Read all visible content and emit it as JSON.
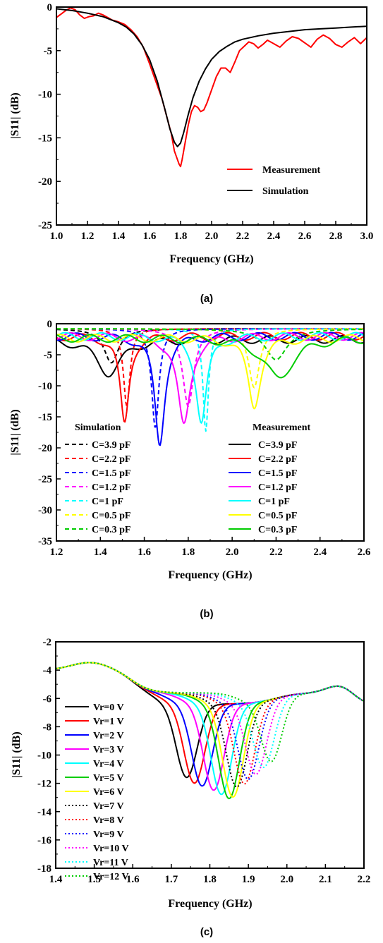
{
  "chart_data": [
    {
      "panel_label": "(a)",
      "type": "line",
      "xlabel": "Frequency (GHz)",
      "ylabel": "|S11| (dB)",
      "xlim": [
        1.0,
        3.0
      ],
      "ylim": [
        -25,
        0
      ],
      "xticks": [
        1.0,
        1.2,
        1.4,
        1.6,
        1.8,
        2.0,
        2.2,
        2.4,
        2.6,
        2.8,
        3.0
      ],
      "xtick_labels": [
        "1.0",
        "1.2",
        "1.4",
        "1.6",
        "1.8",
        "2.0",
        "2.2",
        "2.4",
        "2.6",
        "2.8",
        "3.0"
      ],
      "yticks": [
        0,
        -5,
        -10,
        -15,
        -20,
        -25
      ],
      "ytick_labels": [
        "0",
        "-5",
        "-10",
        "-15",
        "-20",
        "-25"
      ],
      "legend_position": "lower-right",
      "series": [
        {
          "name": "Measurement",
          "color": "#ff0000",
          "dash": "solid",
          "x": [
            1.0,
            1.03,
            1.06,
            1.09,
            1.12,
            1.15,
            1.18,
            1.21,
            1.24,
            1.27,
            1.3,
            1.33,
            1.36,
            1.4,
            1.44,
            1.48,
            1.52,
            1.56,
            1.6,
            1.64,
            1.68,
            1.71,
            1.74,
            1.76,
            1.78,
            1.79,
            1.8,
            1.81,
            1.83,
            1.85,
            1.87,
            1.89,
            1.91,
            1.93,
            1.95,
            1.97,
            2.0,
            2.03,
            2.06,
            2.09,
            2.12,
            2.15,
            2.18,
            2.21,
            2.24,
            2.27,
            2.3,
            2.33,
            2.36,
            2.4,
            2.44,
            2.48,
            2.52,
            2.56,
            2.6,
            2.64,
            2.68,
            2.72,
            2.76,
            2.8,
            2.84,
            2.88,
            2.92,
            2.96,
            3.0
          ],
          "y": [
            -1.2,
            -0.8,
            -0.4,
            -0.1,
            -0.3,
            -0.9,
            -1.3,
            -1.1,
            -1.0,
            -0.7,
            -0.9,
            -1.2,
            -1.5,
            -1.7,
            -2.0,
            -2.6,
            -3.4,
            -4.6,
            -6.5,
            -8.5,
            -10.5,
            -12.5,
            -14.5,
            -16.5,
            -17.5,
            -18.0,
            -18.3,
            -17.5,
            -15.5,
            -13.5,
            -12.0,
            -11.3,
            -11.5,
            -12.0,
            -11.8,
            -11.0,
            -9.5,
            -8.0,
            -7.0,
            -7.0,
            -7.5,
            -6.3,
            -5.0,
            -4.5,
            -4.0,
            -4.2,
            -4.7,
            -4.3,
            -3.8,
            -4.2,
            -4.6,
            -3.9,
            -3.4,
            -3.6,
            -4.1,
            -4.6,
            -3.7,
            -3.2,
            -3.6,
            -4.3,
            -4.6,
            -4.0,
            -3.5,
            -4.2,
            -3.5
          ]
        },
        {
          "name": "Simulation",
          "color": "#000000",
          "dash": "solid",
          "x": [
            1.0,
            1.1,
            1.2,
            1.3,
            1.4,
            1.45,
            1.5,
            1.55,
            1.6,
            1.65,
            1.7,
            1.73,
            1.76,
            1.78,
            1.8,
            1.82,
            1.85,
            1.88,
            1.92,
            1.96,
            2.0,
            2.05,
            2.1,
            2.15,
            2.2,
            2.3,
            2.4,
            2.5,
            2.6,
            2.7,
            2.8,
            2.9,
            3.0
          ],
          "y": [
            -0.2,
            -0.4,
            -0.7,
            -1.1,
            -1.8,
            -2.3,
            -3.1,
            -4.3,
            -6.0,
            -8.5,
            -11.8,
            -13.9,
            -15.5,
            -16.0,
            -15.6,
            -14.4,
            -12.3,
            -10.4,
            -8.5,
            -7.1,
            -6.0,
            -5.1,
            -4.5,
            -4.0,
            -3.7,
            -3.3,
            -3.0,
            -2.8,
            -2.6,
            -2.5,
            -2.4,
            -2.3,
            -2.2
          ]
        }
      ]
    },
    {
      "panel_label": "(b)",
      "type": "line",
      "xlabel": "Frequency (GHz)",
      "ylabel": "|S11| (dB)",
      "xlim": [
        1.2,
        2.6
      ],
      "ylim": [
        -35,
        0
      ],
      "xticks": [
        1.2,
        1.4,
        1.6,
        1.8,
        2.0,
        2.2,
        2.4,
        2.6
      ],
      "xtick_labels": [
        "1.2",
        "1.4",
        "1.6",
        "1.8",
        "2.0",
        "2.2",
        "2.4",
        "2.6"
      ],
      "yticks": [
        0,
        -5,
        -10,
        -15,
        -20,
        -25,
        -30,
        -35
      ],
      "ytick_labels": [
        "0",
        "-5",
        "-10",
        "-15",
        "-20",
        "-25",
        "-30",
        "-35"
      ],
      "legend_titles": [
        "Simulation",
        "Measurement"
      ],
      "series": [
        {
          "name": "C=3.9 pF",
          "group": "Simulation",
          "color": "#000000",
          "dash": "dashed",
          "notch": {
            "f0": 1.45,
            "depth": 5.5,
            "w": 0.04,
            "base": 0.8
          }
        },
        {
          "name": "C=2.2 pF",
          "group": "Simulation",
          "color": "#ff0000",
          "dash": "dashed",
          "notch": {
            "f0": 1.52,
            "depth": 12.5,
            "w": 0.018,
            "base": 0.8
          }
        },
        {
          "name": "C=1.5 pF",
          "group": "Simulation",
          "color": "#0000ff",
          "dash": "dashed",
          "notch": {
            "f0": 1.65,
            "depth": 16.0,
            "w": 0.02,
            "base": 0.8
          }
        },
        {
          "name": "C=1.2 pF",
          "group": "Simulation",
          "color": "#ff00ff",
          "dash": "dashed",
          "notch": {
            "f0": 1.8,
            "depth": 12.5,
            "w": 0.03,
            "base": 0.8
          }
        },
        {
          "name": "C=1 pF",
          "group": "Simulation",
          "color": "#00ffff",
          "dash": "dashed",
          "notch": {
            "f0": 1.88,
            "depth": 16.5,
            "w": 0.015,
            "base": 0.8
          }
        },
        {
          "name": "C=0.5 pF",
          "group": "Simulation",
          "color": "#ffff00",
          "dash": "dashed",
          "notch": {
            "f0": 2.1,
            "depth": 9.5,
            "w": 0.03,
            "base": 0.8
          }
        },
        {
          "name": "C=0.3 pF",
          "group": "Simulation",
          "color": "#00cc00",
          "dash": "dashed",
          "notch": {
            "f0": 2.2,
            "depth": 5.0,
            "w": 0.06,
            "base": 0.8
          }
        },
        {
          "name": "C=3.9 pF",
          "group": "Measurement",
          "color": "#000000",
          "dash": "solid",
          "notch": {
            "f0": 1.44,
            "depth": 5.5,
            "w": 0.07,
            "base": 2.0
          }
        },
        {
          "name": "C=2.2 pF",
          "group": "Measurement",
          "color": "#ff0000",
          "dash": "solid",
          "notch": {
            "f0": 1.51,
            "depth": 14.2,
            "w": 0.025,
            "base": 1.5
          }
        },
        {
          "name": "C=1.5 pF",
          "group": "Measurement",
          "color": "#0000ff",
          "dash": "solid",
          "notch": {
            "f0": 1.67,
            "depth": 17.5,
            "w": 0.028,
            "base": 1.5
          }
        },
        {
          "name": "C=1.2 pF",
          "group": "Measurement",
          "color": "#ff00ff",
          "dash": "solid",
          "notch": {
            "f0": 1.78,
            "depth": 14.5,
            "w": 0.035,
            "base": 1.5
          }
        },
        {
          "name": "C=1 pF",
          "group": "Measurement",
          "color": "#00ffff",
          "dash": "solid",
          "notch": {
            "f0": 1.86,
            "depth": 14.0,
            "w": 0.03,
            "base": 1.5
          }
        },
        {
          "name": "C=0.5 pF",
          "group": "Measurement",
          "color": "#ffff00",
          "dash": "solid",
          "notch": {
            "f0": 2.1,
            "depth": 11.0,
            "w": 0.035,
            "base": 1.8
          }
        },
        {
          "name": "C=0.3 pF",
          "group": "Measurement",
          "color": "#00cc00",
          "dash": "solid",
          "notch": {
            "f0": 2.21,
            "depth": 6.5,
            "w": 0.08,
            "base": 1.8
          }
        }
      ]
    },
    {
      "panel_label": "(c)",
      "type": "line",
      "xlabel": "Frequency (GHz)",
      "ylabel": "|S11| (dB)",
      "xlim": [
        1.4,
        2.2
      ],
      "ylim": [
        -18,
        -2
      ],
      "xticks": [
        1.4,
        1.5,
        1.6,
        1.7,
        1.8,
        1.9,
        2.0,
        2.1,
        2.2
      ],
      "xtick_labels": [
        "1.4",
        "1.5",
        "1.6",
        "1.7",
        "1.8",
        "1.9",
        "2.0",
        "2.1",
        "2.2"
      ],
      "yticks": [
        -2,
        -4,
        -6,
        -8,
        -10,
        -12,
        -14,
        -16,
        -18
      ],
      "ytick_labels": [
        "-2",
        "-4",
        "-6",
        "-8",
        "-10",
        "-12",
        "-14",
        "-16",
        "-18"
      ],
      "legend_position": "left",
      "series": [
        {
          "name": "Vr=0 V",
          "color": "#000000",
          "dash": "solid",
          "f0": 1.74,
          "min": -10.8
        },
        {
          "name": "Vr=1 V",
          "color": "#ff0000",
          "dash": "solid",
          "f0": 1.76,
          "min": -11.2
        },
        {
          "name": "Vr=2 V",
          "color": "#0000ff",
          "dash": "solid",
          "f0": 1.78,
          "min": -11.4
        },
        {
          "name": "Vr=3 V",
          "color": "#ff00ff",
          "dash": "solid",
          "f0": 1.81,
          "min": -11.7
        },
        {
          "name": "Vr=4 V",
          "color": "#00ffff",
          "dash": "solid",
          "f0": 1.83,
          "min": -12.0
        },
        {
          "name": "Vr=5 V",
          "color": "#00cc00",
          "dash": "solid",
          "f0": 1.85,
          "min": -12.3
        },
        {
          "name": "Vr=6 V",
          "color": "#ffff00",
          "dash": "solid",
          "f0": 1.86,
          "min": -12.2
        },
        {
          "name": "Vr=7 V",
          "color": "#000000",
          "dash": "dotted",
          "f0": 1.87,
          "min": -11.5
        },
        {
          "name": "Vr=8 V",
          "color": "#ff0000",
          "dash": "dotted",
          "f0": 1.89,
          "min": -11.3
        },
        {
          "name": "Vr=9 V",
          "color": "#0000ff",
          "dash": "dotted",
          "f0": 1.9,
          "min": -11.0
        },
        {
          "name": "Vr=10 V",
          "color": "#ff00ff",
          "dash": "dotted",
          "f0": 1.92,
          "min": -10.7
        },
        {
          "name": "Vr=11 V",
          "color": "#00ffff",
          "dash": "dotted",
          "f0": 1.94,
          "min": -10.3
        },
        {
          "name": "Vr=12 V",
          "color": "#00cc00",
          "dash": "dotted",
          "f0": 1.96,
          "min": -10.0
        }
      ]
    }
  ]
}
